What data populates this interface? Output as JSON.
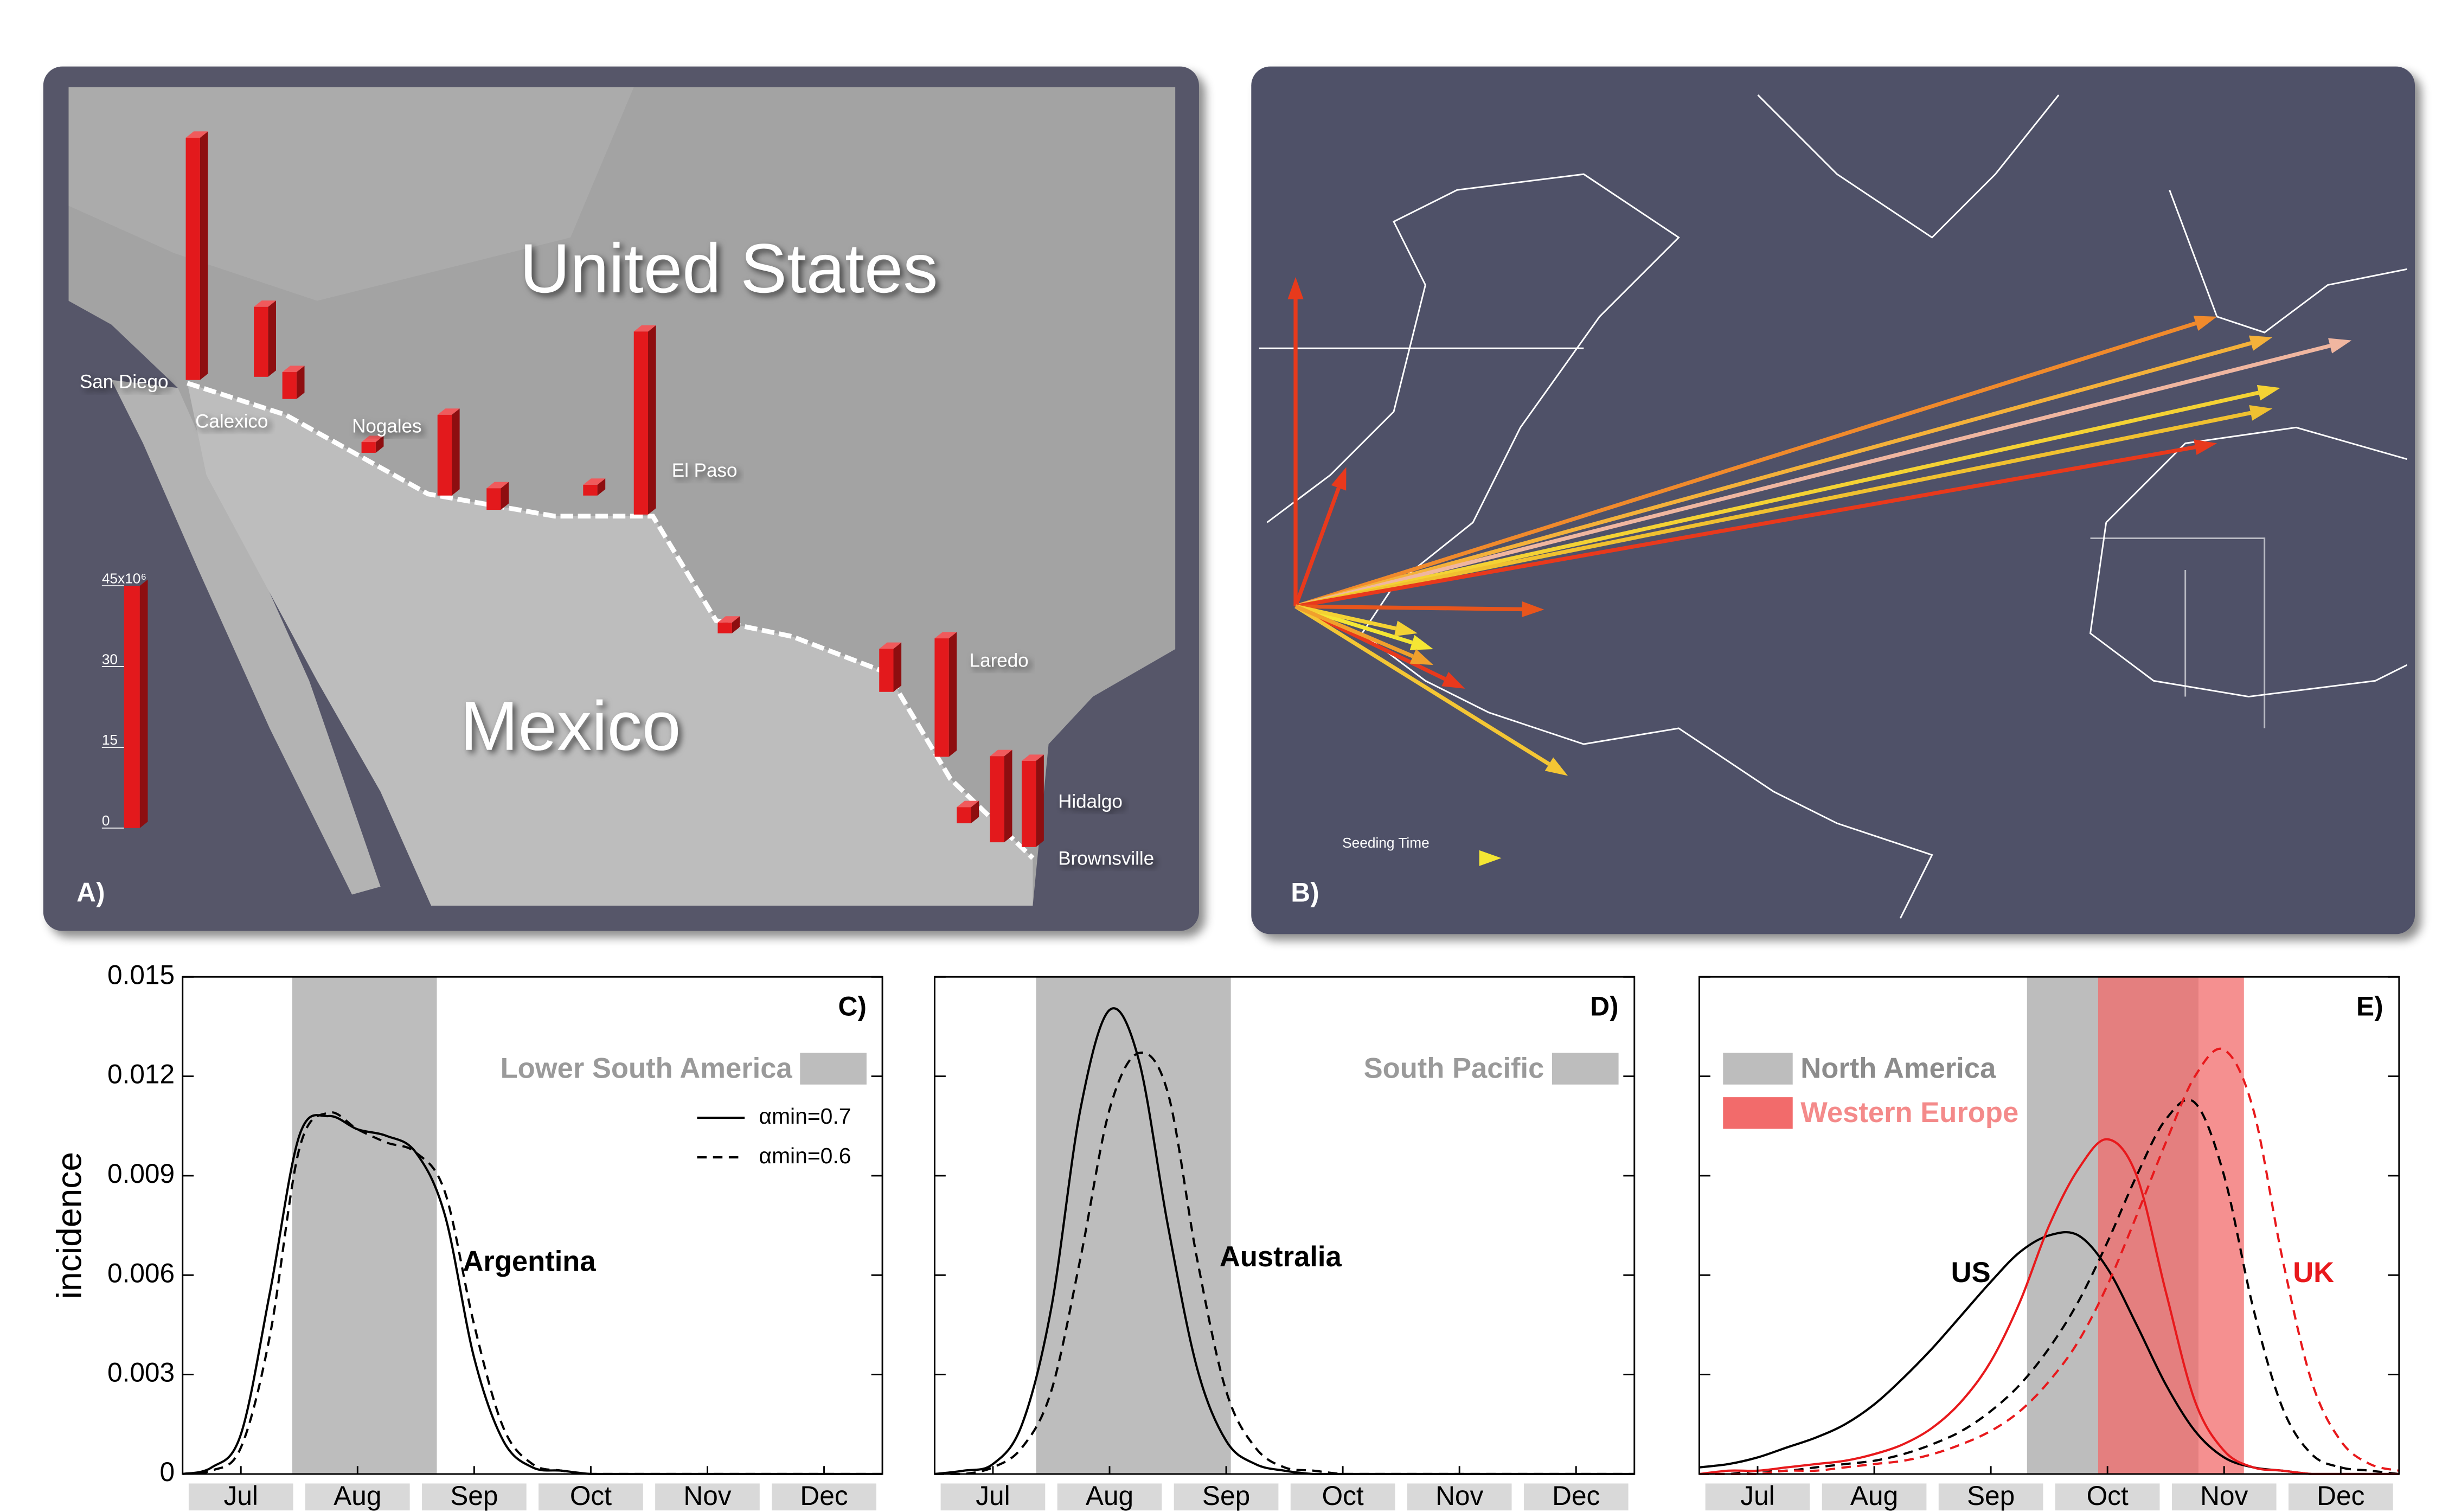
{
  "chart_data": [
    {
      "type": "bar-map",
      "panel_label": "A)",
      "country_labels": [
        "United States",
        "Mexico"
      ],
      "cities": [
        "San Diego",
        "Calexico",
        "Nogales",
        "El Paso",
        "Laredo",
        "Hidalgo",
        "Brownsville"
      ],
      "values": [
        45,
        13,
        5,
        2,
        15,
        4,
        2,
        34,
        2,
        8,
        22,
        3,
        16,
        16
      ],
      "color": "#e3191c",
      "ylim": [
        0,
        45
      ],
      "yticks": [
        0,
        15,
        30,
        {
          "value": 45,
          "label": "45x10⁶"
        }
      ]
    },
    {
      "type": "flow-map",
      "panel_label": "B)",
      "legend_label": "Seeding Time"
    },
    {
      "type": "line",
      "panel_label": "C)",
      "ylabel": "incidence",
      "xlim": [
        0,
        6
      ],
      "xticks": [
        {
          "value": 0.5,
          "label": "Jul"
        },
        {
          "value": 1.5,
          "label": "Aug"
        },
        {
          "value": 2.5,
          "label": "Sep"
        },
        {
          "value": 3.5,
          "label": "Oct"
        },
        {
          "value": 4.5,
          "label": "Nov"
        },
        {
          "value": 5.5,
          "label": "Dec"
        }
      ],
      "ylim": [
        0,
        0.015
      ],
      "yticks": [
        0,
        0.003,
        0.006,
        0.009,
        0.012,
        0.015
      ],
      "ytick_labels": true,
      "x": [
        0,
        0.25,
        0.5,
        0.75,
        1,
        1.25,
        1.5,
        1.75,
        2,
        2.25,
        2.5,
        2.75,
        3,
        3.25,
        3.5,
        3.75,
        4,
        4.25,
        4.5,
        4.75,
        5,
        5.25,
        5.5,
        5.75,
        6
      ],
      "series": [
        {
          "name": "αmin=0.7",
          "color": "#000000",
          "dash": "solid",
          "values": [
            0,
            0.0002,
            0.0012,
            0.0055,
            0.0102,
            0.0108,
            0.0104,
            0.0102,
            0.0097,
            0.0078,
            0.0035,
            0.001,
            0.0002,
            0.0001,
            0,
            0,
            0,
            0,
            0,
            0,
            0,
            0,
            0,
            0,
            0
          ]
        },
        {
          "name": "αmin=0.6",
          "color": "#000000",
          "dash": "dashed",
          "values": [
            0,
            0.0001,
            0.0008,
            0.0042,
            0.0098,
            0.0109,
            0.0104,
            0.01,
            0.0097,
            0.0085,
            0.0045,
            0.0014,
            0.0003,
            0.0001,
            0,
            0,
            0,
            0,
            0,
            0,
            0,
            0,
            0,
            0,
            0
          ]
        }
      ],
      "spans": [
        {
          "name": "Lower South America",
          "color": "#bdbdbd",
          "range": [
            0.94,
            2.18
          ]
        }
      ],
      "annotations": [
        {
          "text": "Argentina",
          "color": "#000000"
        }
      ]
    },
    {
      "type": "line",
      "panel_label": "D)",
      "xlim": [
        0,
        6
      ],
      "xticks": [
        {
          "value": 0.5,
          "label": "Jul"
        },
        {
          "value": 1.5,
          "label": "Aug"
        },
        {
          "value": 2.5,
          "label": "Sep"
        },
        {
          "value": 3.5,
          "label": "Oct"
        },
        {
          "value": 4.5,
          "label": "Nov"
        },
        {
          "value": 5.5,
          "label": "Dec"
        }
      ],
      "ylim": [
        0,
        0.015
      ],
      "yticks": [
        0,
        0.003,
        0.006,
        0.009,
        0.012,
        0.015
      ],
      "ytick_labels": false,
      "x": [
        0,
        0.25,
        0.5,
        0.75,
        1,
        1.25,
        1.5,
        1.75,
        2,
        2.25,
        2.5,
        2.75,
        3,
        3.25,
        3.5,
        3.75,
        4,
        4.25,
        4.5,
        4.75,
        5,
        5.25,
        5.5,
        5.75,
        6
      ],
      "series": [
        {
          "color": "#000000",
          "dash": "solid",
          "values": [
            0,
            0.0001,
            0.0003,
            0.0015,
            0.005,
            0.011,
            0.014,
            0.0125,
            0.0075,
            0.0032,
            0.001,
            0.0003,
            0.0001,
            0,
            0,
            0,
            0,
            0,
            0,
            0,
            0,
            0,
            0,
            0,
            0
          ]
        },
        {
          "color": "#000000",
          "dash": "dashed",
          "values": [
            0,
            0,
            0.0002,
            0.0008,
            0.0025,
            0.0065,
            0.011,
            0.0127,
            0.0115,
            0.0065,
            0.0025,
            0.0008,
            0.0002,
            0.0001,
            0,
            0,
            0,
            0,
            0,
            0,
            0,
            0,
            0,
            0,
            0
          ]
        }
      ],
      "spans": [
        {
          "name": "South Pacific",
          "color": "#bdbdbd",
          "range": [
            0.87,
            2.54
          ]
        }
      ],
      "annotations": [
        {
          "text": "Australia",
          "color": "#000000"
        }
      ]
    },
    {
      "type": "line",
      "panel_label": "E)",
      "xlim": [
        0,
        6
      ],
      "xticks": [
        {
          "value": 0.5,
          "label": "Jul"
        },
        {
          "value": 1.5,
          "label": "Aug"
        },
        {
          "value": 2.5,
          "label": "Sep"
        },
        {
          "value": 3.5,
          "label": "Oct"
        },
        {
          "value": 4.5,
          "label": "Nov"
        },
        {
          "value": 5.5,
          "label": "Dec"
        }
      ],
      "ylim": [
        0,
        0.015
      ],
      "yticks": [
        0,
        0.003,
        0.006,
        0.009,
        0.012,
        0.015
      ],
      "ytick_labels": false,
      "x": [
        0,
        0.25,
        0.5,
        0.75,
        1,
        1.25,
        1.5,
        1.75,
        2,
        2.25,
        2.5,
        2.75,
        3,
        3.25,
        3.5,
        3.75,
        4,
        4.25,
        4.5,
        4.75,
        5,
        5.25,
        5.5,
        5.75,
        6
      ],
      "series": [
        {
          "color": "#000000",
          "dash": "solid",
          "values": [
            0.0002,
            0.0003,
            0.0005,
            0.0008,
            0.0011,
            0.0015,
            0.0021,
            0.0029,
            0.0038,
            0.0048,
            0.0058,
            0.0067,
            0.0072,
            0.0072,
            0.0062,
            0.0045,
            0.0027,
            0.0013,
            0.0005,
            0.0002,
            0.0001,
            0,
            0,
            0,
            0
          ]
        },
        {
          "color": "#000000",
          "dash": "dashed",
          "values": [
            0,
            0,
            0.0001,
            0.0001,
            0.0002,
            0.0003,
            0.0004,
            0.0006,
            0.0009,
            0.0013,
            0.0019,
            0.0027,
            0.0038,
            0.0052,
            0.007,
            0.009,
            0.0107,
            0.0112,
            0.009,
            0.005,
            0.002,
            0.0006,
            0.0002,
            0.0001,
            0
          ]
        },
        {
          "color": "#e8191c",
          "dash": "solid",
          "values": [
            0,
            0.0001,
            0.0001,
            0.0002,
            0.0003,
            0.0004,
            0.0006,
            0.0009,
            0.0014,
            0.0022,
            0.0034,
            0.0052,
            0.0075,
            0.0092,
            0.0101,
            0.009,
            0.0055,
            0.0022,
            0.0007,
            0.0002,
            0.0001,
            0,
            0,
            0,
            0
          ]
        },
        {
          "color": "#e8191c",
          "dash": "dashed",
          "values": [
            0,
            0,
            0,
            0.0001,
            0.0001,
            0.0002,
            0.0003,
            0.0004,
            0.0006,
            0.0009,
            0.0013,
            0.0019,
            0.0028,
            0.004,
            0.0057,
            0.0078,
            0.01,
            0.012,
            0.0128,
            0.011,
            0.0065,
            0.0028,
            0.001,
            0.0003,
            0.0001
          ]
        }
      ],
      "spans": [
        {
          "name": "North America",
          "color": "#bdbdbd",
          "range": [
            2.81,
            4.28
          ]
        },
        {
          "name": "Western Europe",
          "color": "#f26b6b",
          "range": [
            3.42,
            4.67
          ]
        }
      ],
      "annotations": [
        {
          "text": "US",
          "color": "#000000"
        },
        {
          "text": "UK",
          "color": "#e8191c"
        }
      ]
    }
  ]
}
